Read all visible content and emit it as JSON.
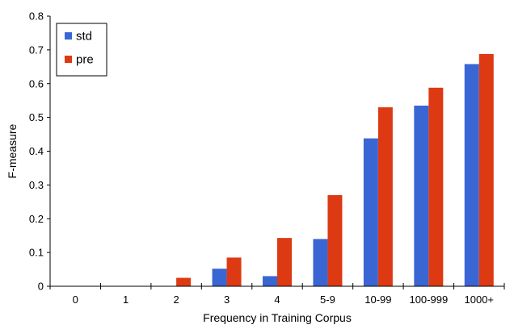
{
  "chart_data": {
    "type": "bar",
    "xlabel": "Frequency in Training Corpus",
    "ylabel": "F-measure",
    "ylim": [
      0,
      0.8
    ],
    "yticks": [
      "0",
      "0.1",
      "0.2",
      "0.3",
      "0.4",
      "0.5",
      "0.6",
      "0.7",
      "0.8"
    ],
    "categories": [
      "0",
      "1",
      "2",
      "3",
      "4",
      "5-9",
      "10-99",
      "100-999",
      "1000+"
    ],
    "grid": false,
    "legend_position": "top-left",
    "series": [
      {
        "name": "std",
        "color": "#3a66d4",
        "values": [
          0,
          0,
          0,
          0.052,
          0.03,
          0.14,
          0.438,
          0.535,
          0.658
        ]
      },
      {
        "name": "pre",
        "color": "#dd3a14",
        "values": [
          0,
          0,
          0.025,
          0.085,
          0.143,
          0.27,
          0.53,
          0.588,
          0.688
        ]
      }
    ]
  }
}
